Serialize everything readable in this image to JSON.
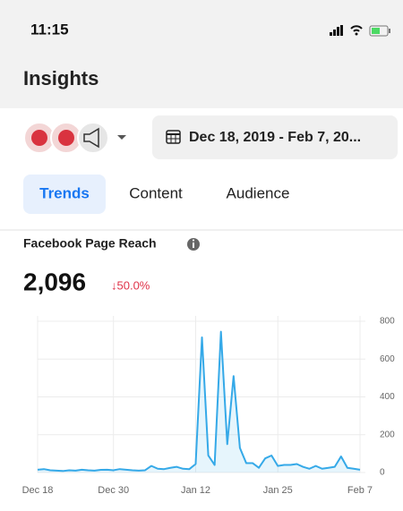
{
  "status_bar": {
    "time": "11:15"
  },
  "header": {
    "title": "Insights"
  },
  "toolbar": {
    "date_range": "Dec 18, 2019 - Feb 7, 20..."
  },
  "tabs": [
    "Trends",
    "Content",
    "Audience"
  ],
  "card": {
    "title": "Facebook Page Reach",
    "total": "2,096",
    "change": "↓50.0%"
  },
  "chart_data": {
    "type": "line",
    "categories": [
      "Dec 18",
      null,
      null,
      null,
      null,
      null,
      null,
      null,
      null,
      null,
      null,
      null,
      "Dec 30",
      null,
      null,
      null,
      null,
      null,
      null,
      null,
      null,
      null,
      null,
      null,
      null,
      "Jan 12",
      null,
      null,
      null,
      null,
      null,
      null,
      null,
      null,
      null,
      null,
      null,
      null,
      "Jan 25",
      null,
      null,
      null,
      null,
      null,
      null,
      null,
      null,
      null,
      null,
      null,
      null,
      "Feb 7"
    ],
    "series": [
      {
        "color": "#35a9e8",
        "values": [
          15,
          18,
          12,
          10,
          8,
          12,
          10,
          15,
          12,
          10,
          14,
          15,
          12,
          18,
          15,
          12,
          10,
          12,
          35,
          20,
          18,
          25,
          30,
          20,
          18,
          45,
          715,
          90,
          40,
          745,
          150,
          510,
          130,
          50,
          50,
          25,
          75,
          90,
          35,
          40,
          40,
          45,
          30,
          20,
          35,
          20,
          25,
          30,
          85,
          25,
          20,
          15
        ]
      }
    ],
    "ylim": [
      0,
      800
    ],
    "yticks": [
      0,
      200,
      400,
      600,
      800
    ],
    "grid": true
  }
}
